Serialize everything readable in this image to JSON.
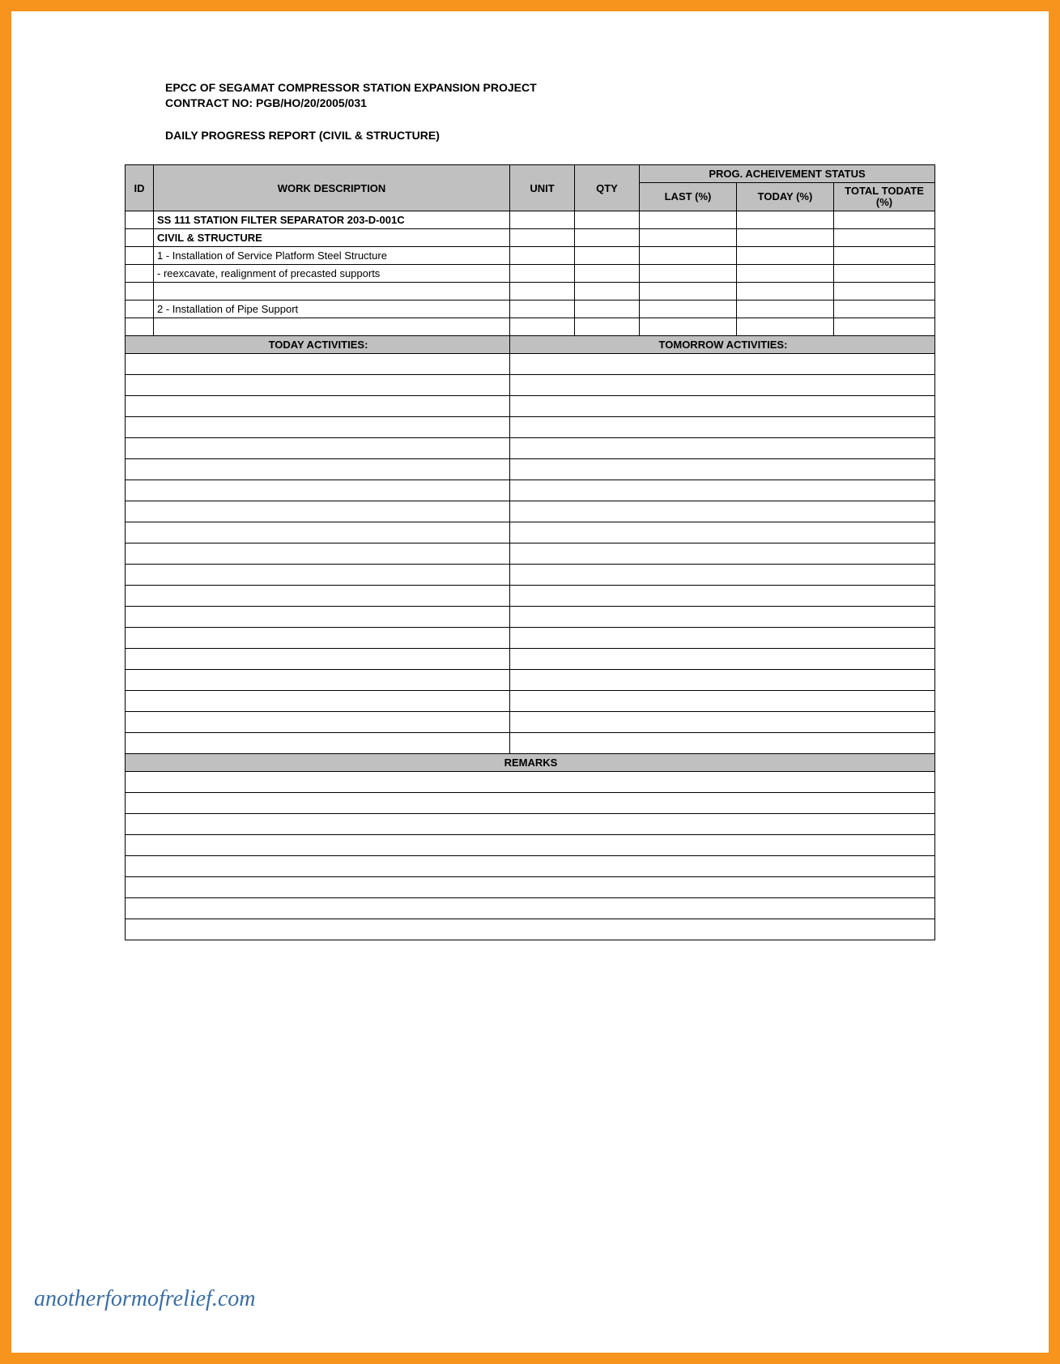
{
  "colors": {
    "frame_border": "#f7941d",
    "table_border": "#000000",
    "header_fill": "#c0c0c0",
    "page_bg": "#ffffff",
    "watermark_text": "#3a6ea5"
  },
  "typography": {
    "body_font": "Arial",
    "watermark_font": "Georgia",
    "title_size_pt": 11,
    "cell_size_pt": 10
  },
  "header": {
    "line1": "EPCC OF SEGAMAT COMPRESSOR STATION EXPANSION PROJECT",
    "line2": "CONTRACT NO: PGB/HO/20/2005/031",
    "subtitle": "DAILY PROGRESS REPORT (CIVIL & STRUCTURE)"
  },
  "columns": {
    "id": "ID",
    "work_description": "WORK DESCRIPTION",
    "unit": "UNIT",
    "qty": "QTY",
    "prog_status": "PROG. ACHEIVEMENT STATUS",
    "last_pct": "LAST (%)",
    "today_pct": "TODAY (%)",
    "total_todate_pct": "TOTAL TODATE (%)"
  },
  "work_rows": [
    {
      "id": "",
      "desc": "SS 111 STATION FILTER SEPARATOR 203-D-001C",
      "bold": true,
      "indent": 0
    },
    {
      "id": "",
      "desc": "CIVIL & STRUCTURE",
      "bold": true,
      "indent": 0
    },
    {
      "id": "",
      "desc": "1 - Installation of Service Platform Steel Structure",
      "bold": false,
      "indent": 0
    },
    {
      "id": "",
      "desc": "- reexcavate, realignment of precasted supports",
      "bold": false,
      "indent": 1
    },
    {
      "id": "",
      "desc": "",
      "bold": false,
      "indent": 0
    },
    {
      "id": "",
      "desc": "2 - Installation of Pipe Support",
      "bold": false,
      "indent": 0
    },
    {
      "id": "",
      "desc": "",
      "bold": false,
      "indent": 0
    }
  ],
  "sections": {
    "today_activities": "TODAY ACTIVITIES:",
    "tomorrow_activities": "TOMORROW ACTIVITIES:",
    "remarks": "REMARKS"
  },
  "activities_blank_rows": 19,
  "remarks_blank_rows": 8,
  "watermark": "anotherformofrelief.com"
}
